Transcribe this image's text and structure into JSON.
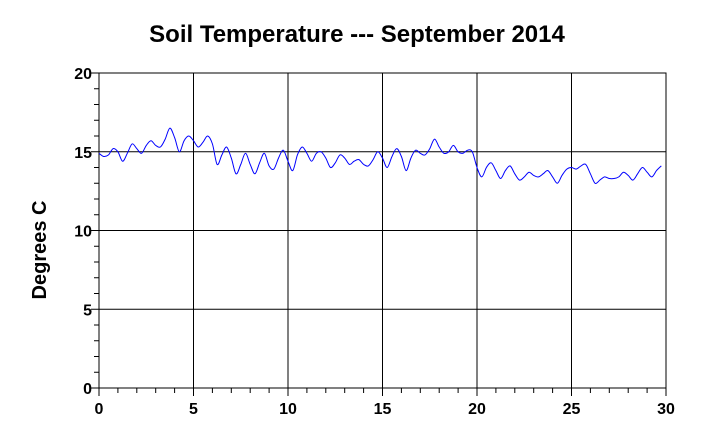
{
  "chart_data": {
    "type": "line",
    "title": "Soil Temperature --- September 2014",
    "xlabel": "",
    "ylabel": "Degrees C",
    "xlim": [
      0,
      30
    ],
    "ylim": [
      0,
      20
    ],
    "x_ticks": [
      0,
      5,
      10,
      15,
      20,
      25,
      30
    ],
    "y_ticks": [
      0,
      5,
      10,
      15,
      20
    ],
    "x_tick_labels": [
      "0",
      "5",
      "10",
      "15",
      "20",
      "25",
      "30"
    ],
    "y_tick_labels": [
      "0",
      "5",
      "10",
      "15",
      "20"
    ],
    "grid": true,
    "legend": "none",
    "colors": {
      "series": "#0000ff",
      "axes": "#000000",
      "grid": "#000000"
    },
    "series": [
      {
        "x": [
          0.0,
          0.25,
          0.5,
          0.75,
          1.0,
          1.25,
          1.5,
          1.75,
          2.0,
          2.25,
          2.5,
          2.75,
          3.0,
          3.25,
          3.5,
          3.75,
          4.0,
          4.25,
          4.5,
          4.75,
          5.0,
          5.25,
          5.5,
          5.75,
          6.0,
          6.25,
          6.5,
          6.75,
          7.0,
          7.25,
          7.5,
          7.75,
          8.0,
          8.25,
          8.5,
          8.75,
          9.0,
          9.25,
          9.5,
          9.75,
          10.0,
          10.25,
          10.5,
          10.75,
          11.0,
          11.25,
          11.5,
          11.75,
          12.0,
          12.25,
          12.5,
          12.75,
          13.0,
          13.25,
          13.5,
          13.75,
          14.0,
          14.25,
          14.5,
          14.75,
          15.0,
          15.25,
          15.5,
          15.75,
          16.0,
          16.25,
          16.5,
          16.75,
          17.0,
          17.25,
          17.5,
          17.75,
          18.0,
          18.25,
          18.5,
          18.75,
          19.0,
          19.25,
          19.5,
          19.75,
          20.0,
          20.25,
          20.5,
          20.75,
          21.0,
          21.25,
          21.5,
          21.75,
          22.0,
          22.25,
          22.5,
          22.75,
          23.0,
          23.25,
          23.5,
          23.75,
          24.0,
          24.25,
          24.5,
          24.75,
          25.0,
          25.25,
          25.5,
          25.75,
          26.0,
          26.25,
          26.5,
          26.75,
          27.0,
          27.25,
          27.5,
          27.75,
          28.0,
          28.25,
          28.5,
          28.75,
          29.0,
          29.25,
          29.5,
          29.75
        ],
        "values": [
          14.9,
          14.7,
          14.8,
          15.2,
          15.0,
          14.4,
          14.9,
          15.5,
          15.2,
          14.9,
          15.4,
          15.7,
          15.4,
          15.3,
          15.8,
          16.5,
          15.9,
          15.0,
          15.7,
          16.0,
          15.7,
          15.3,
          15.6,
          16.0,
          15.5,
          14.2,
          14.8,
          15.3,
          14.6,
          13.6,
          14.2,
          14.9,
          14.2,
          13.6,
          14.3,
          14.9,
          14.1,
          13.9,
          14.6,
          15.1,
          14.4,
          13.8,
          14.8,
          15.3,
          14.9,
          14.4,
          14.9,
          15.0,
          14.6,
          14.0,
          14.3,
          14.8,
          14.6,
          14.2,
          14.4,
          14.5,
          14.2,
          14.1,
          14.5,
          15.0,
          14.6,
          14.0,
          14.7,
          15.2,
          14.7,
          13.8,
          14.6,
          15.1,
          14.9,
          14.8,
          15.2,
          15.8,
          15.3,
          14.9,
          15.0,
          15.4,
          15.0,
          14.9,
          15.1,
          15.0,
          14.0,
          13.4,
          14.0,
          14.3,
          13.8,
          13.3,
          13.8,
          14.1,
          13.6,
          13.2,
          13.4,
          13.7,
          13.5,
          13.4,
          13.6,
          13.8,
          13.4,
          13.0,
          13.5,
          13.9,
          14.0,
          13.9,
          14.1,
          14.2,
          13.6,
          13.0,
          13.2,
          13.4,
          13.3,
          13.3,
          13.4,
          13.7,
          13.5,
          13.2,
          13.6,
          14.0,
          13.7,
          13.4,
          13.8,
          14.1
        ]
      }
    ]
  }
}
